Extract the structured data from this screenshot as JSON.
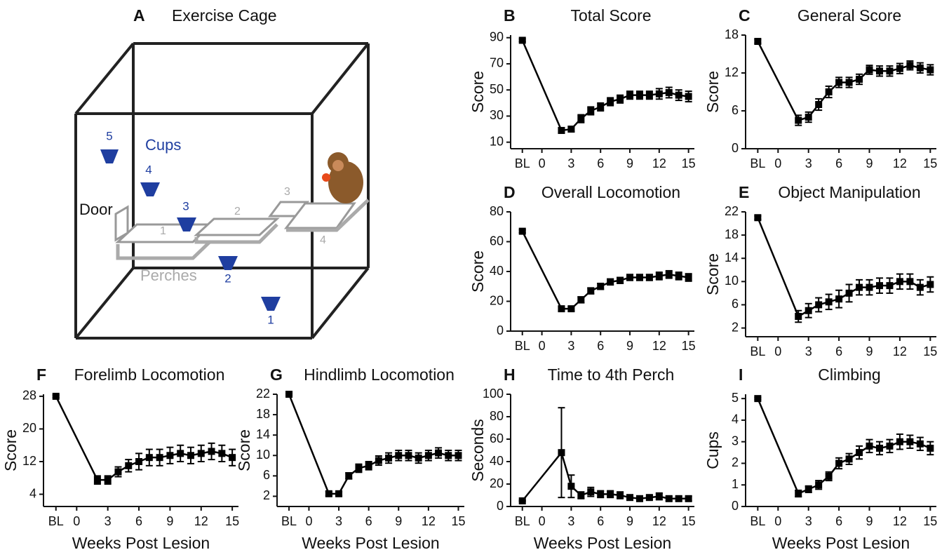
{
  "diagram": {
    "panel": "A",
    "title": "Exercise Cage",
    "cups_label": "Cups",
    "door_label": "Door",
    "perches_label": "Perches",
    "cups": [
      "1",
      "2",
      "3",
      "4",
      "5"
    ],
    "perches": [
      "1",
      "2",
      "3",
      "4"
    ]
  },
  "chart_data": [
    {
      "type": "line",
      "panel": "B",
      "title": "Total Score",
      "y_label": "Score",
      "color": "#000000",
      "x": [
        -2,
        2,
        3,
        4,
        5,
        6,
        7,
        8,
        9,
        10,
        11,
        12,
        13,
        14,
        15
      ],
      "values": [
        88,
        19,
        20,
        28,
        34,
        37,
        41,
        43,
        46,
        46,
        46,
        47,
        48,
        46,
        45
      ],
      "errors": [
        1,
        2,
        2,
        3,
        3,
        3,
        3,
        3,
        3,
        3,
        3,
        4,
        4,
        4,
        4
      ],
      "xlim": [
        -3.2,
        15.6
      ],
      "xticks": [
        {
          "value": -2,
          "label": "BL"
        },
        0,
        3,
        6,
        9,
        12,
        15
      ],
      "ylim": [
        5,
        92
      ],
      "yticks": [
        10,
        30,
        50,
        70,
        90
      ]
    },
    {
      "type": "line",
      "panel": "C",
      "title": "General Score",
      "y_label": "Score",
      "color": "#000000",
      "x": [
        -2,
        2,
        3,
        4,
        5,
        6,
        7,
        8,
        9,
        10,
        11,
        12,
        13,
        14,
        15
      ],
      "values": [
        17,
        4.5,
        5,
        7,
        9,
        10.5,
        10.5,
        11,
        12.5,
        12.3,
        12.3,
        12.7,
        13.2,
        12.8,
        12.5
      ],
      "errors": [
        0.3,
        0.8,
        0.8,
        0.9,
        0.9,
        0.8,
        0.8,
        0.8,
        0.7,
        0.8,
        0.8,
        0.8,
        0.7,
        0.8,
        0.8
      ],
      "xlim": [
        -3.2,
        15.6
      ],
      "xticks": [
        {
          "value": -2,
          "label": "BL"
        },
        0,
        3,
        6,
        9,
        12,
        15
      ],
      "ylim": [
        0,
        18
      ],
      "yticks": [
        0,
        6,
        12,
        18
      ]
    },
    {
      "type": "line",
      "panel": "D",
      "title": "Overall Locomotion",
      "y_label": "Score",
      "color": "#000000",
      "x": [
        -2,
        2,
        3,
        4,
        5,
        6,
        7,
        8,
        9,
        10,
        11,
        12,
        13,
        14,
        15
      ],
      "values": [
        67,
        15,
        15,
        21,
        27,
        30,
        33,
        34,
        36,
        36,
        36,
        37,
        38,
        37,
        36
      ],
      "errors": [
        1,
        1.5,
        1.5,
        2,
        2,
        2,
        2,
        2,
        2,
        2,
        2,
        2.5,
        2.5,
        2.5,
        2.5
      ],
      "xlim": [
        -3.2,
        15.6
      ],
      "xticks": [
        {
          "value": -2,
          "label": "BL"
        },
        0,
        3,
        6,
        9,
        12,
        15
      ],
      "ylim": [
        0,
        80
      ],
      "yticks": [
        0,
        20,
        40,
        60,
        80
      ]
    },
    {
      "type": "line",
      "panel": "E",
      "title": "Object Manipulation",
      "y_label": "Score",
      "color": "#000000",
      "x": [
        -2,
        2,
        3,
        4,
        5,
        6,
        7,
        8,
        9,
        10,
        11,
        12,
        13,
        14,
        15
      ],
      "values": [
        21,
        4,
        5,
        6,
        6.5,
        7,
        8,
        9,
        9,
        9.3,
        9.3,
        10,
        10,
        9,
        9.5
      ],
      "errors": [
        0.3,
        1,
        1.2,
        1.2,
        1.3,
        1.5,
        1.5,
        1.3,
        1.3,
        1.3,
        1.3,
        1.3,
        1.3,
        1.3,
        1.3
      ],
      "xlim": [
        -3.2,
        15.6
      ],
      "xticks": [
        {
          "value": -2,
          "label": "BL"
        },
        0,
        3,
        6,
        9,
        12,
        15
      ],
      "ylim": [
        0.5,
        22
      ],
      "yticks": [
        2,
        6,
        10,
        14,
        18,
        22
      ]
    },
    {
      "type": "line",
      "panel": "F",
      "title": "Forelimb Locomotion",
      "y_label": "Score",
      "x_label": "Weeks Post Lesion",
      "color": "#000000",
      "x": [
        -2,
        2,
        3,
        4,
        5,
        6,
        7,
        8,
        9,
        10,
        11,
        12,
        13,
        14,
        15
      ],
      "values": [
        28,
        7.5,
        7.5,
        9.5,
        11,
        12,
        13,
        13,
        13.5,
        14,
        13.5,
        14,
        14.5,
        14,
        13
      ],
      "errors": [
        0.3,
        1,
        1,
        1.2,
        1.5,
        2,
        2,
        2,
        2,
        2,
        2,
        2,
        2,
        2,
        2
      ],
      "xlim": [
        -3.2,
        15.6
      ],
      "xticks": [
        {
          "value": -2,
          "label": "BL"
        },
        0,
        3,
        6,
        9,
        12,
        15
      ],
      "ylim": [
        1,
        28.5
      ],
      "yticks": [
        4,
        12,
        20,
        28
      ]
    },
    {
      "type": "line",
      "panel": "G",
      "title": "Hindlimb Locomotion",
      "y_label": "Score",
      "x_label": "Weeks Post Lesion",
      "color": "#000000",
      "x": [
        -2,
        2,
        3,
        4,
        5,
        6,
        7,
        8,
        9,
        10,
        11,
        12,
        13,
        14,
        15
      ],
      "values": [
        22,
        2.5,
        2.5,
        6,
        7.5,
        8,
        9,
        9.5,
        10,
        10,
        9.5,
        10,
        10.5,
        10,
        10
      ],
      "errors": [
        0.2,
        0.4,
        0.4,
        0.6,
        0.8,
        0.8,
        0.9,
        1,
        1,
        1,
        1,
        1,
        1,
        1,
        1
      ],
      "xlim": [
        -3.2,
        15.6
      ],
      "xticks": [
        {
          "value": -2,
          "label": "BL"
        },
        0,
        3,
        6,
        9,
        12,
        15
      ],
      "ylim": [
        0,
        22
      ],
      "yticks": [
        2,
        6,
        10,
        14,
        18,
        22
      ]
    },
    {
      "type": "line",
      "panel": "H",
      "title": "Time to 4th Perch",
      "y_label": "Seconds",
      "x_label": "Weeks Post Lesion",
      "color": "#000000",
      "x": [
        -2,
        2,
        3,
        4,
        5,
        6,
        7,
        8,
        9,
        10,
        11,
        12,
        13,
        14,
        15
      ],
      "values": [
        5,
        48,
        18,
        10,
        13,
        11,
        11,
        10,
        8,
        7,
        8,
        9,
        7,
        7,
        7
      ],
      "errors": [
        0.5,
        40,
        10,
        3,
        4,
        3,
        3,
        3,
        2,
        2,
        2,
        3,
        2,
        2,
        2
      ],
      "xlim": [
        -3.2,
        15.6
      ],
      "xticks": [
        {
          "value": -2,
          "label": "BL"
        },
        0,
        3,
        6,
        9,
        12,
        15
      ],
      "ylim": [
        0,
        100
      ],
      "yticks": [
        0,
        20,
        40,
        60,
        80,
        100
      ]
    },
    {
      "type": "line",
      "panel": "I",
      "title": "Climbing",
      "y_label": "Cups",
      "x_label": "Weeks Post Lesion",
      "color": "#000000",
      "x": [
        -2,
        2,
        3,
        4,
        5,
        6,
        7,
        8,
        9,
        10,
        11,
        12,
        13,
        14,
        15
      ],
      "values": [
        5,
        0.6,
        0.8,
        1,
        1.4,
        2,
        2.2,
        2.5,
        2.8,
        2.7,
        2.8,
        3,
        3,
        2.9,
        2.7
      ],
      "errors": [
        0.05,
        0.15,
        0.15,
        0.2,
        0.2,
        0.25,
        0.25,
        0.3,
        0.3,
        0.3,
        0.3,
        0.35,
        0.3,
        0.3,
        0.3
      ],
      "xlim": [
        -3.2,
        15.6
      ],
      "xticks": [
        {
          "value": -2,
          "label": "BL"
        },
        0,
        3,
        6,
        9,
        12,
        15
      ],
      "ylim": [
        0,
        5.2
      ],
      "yticks": [
        0,
        1,
        2,
        3,
        4,
        5
      ]
    }
  ]
}
